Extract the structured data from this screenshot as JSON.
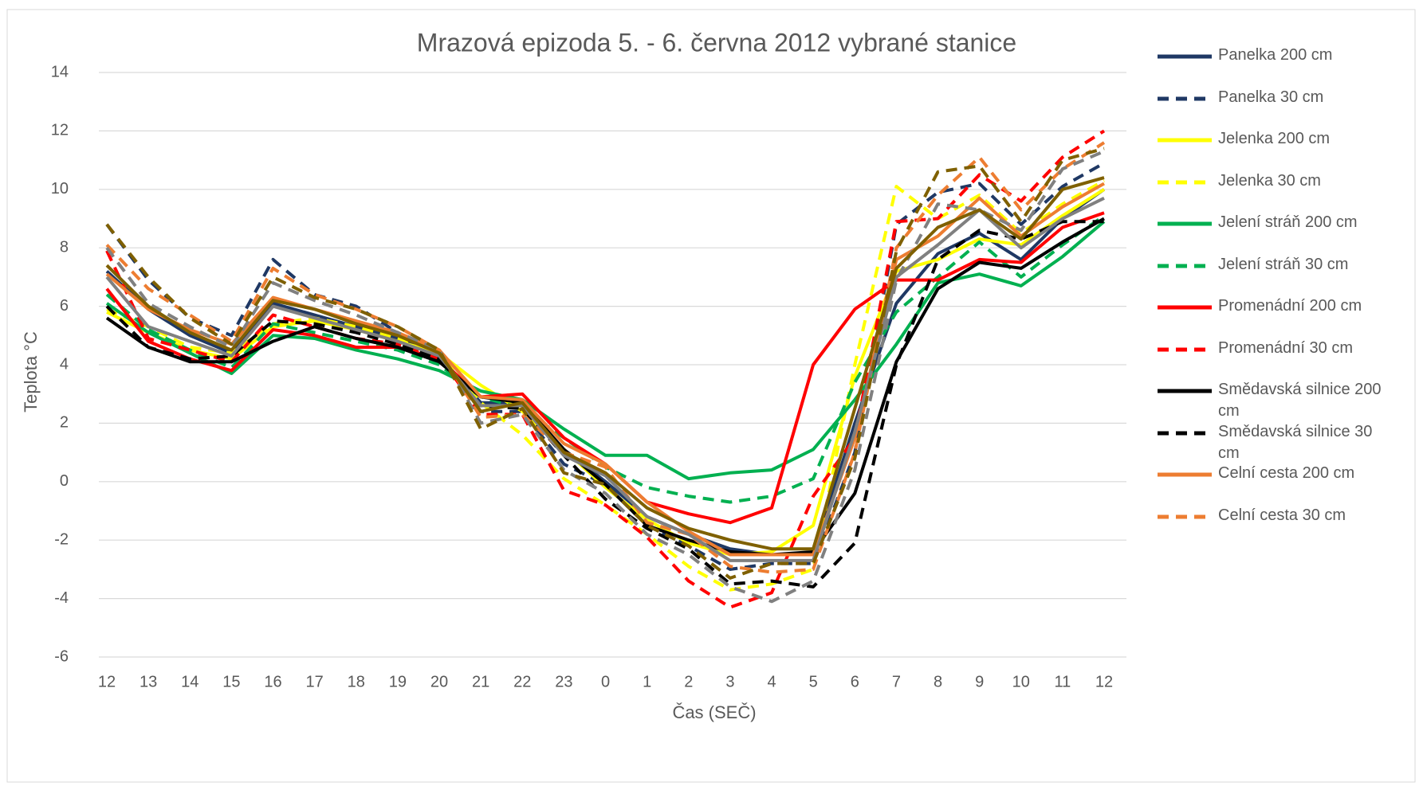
{
  "chart_data": {
    "type": "line",
    "title": "Mrazová epizoda 5. - 6. června 2012 vybrané stanice",
    "x_label": "Čas (SEČ)",
    "y_label": "Teplota °C",
    "categories": [
      "12",
      "13",
      "14",
      "15",
      "16",
      "17",
      "18",
      "19",
      "20",
      "21",
      "22",
      "23",
      "0",
      "1",
      "2",
      "3",
      "4",
      "5",
      "6",
      "7",
      "8",
      "9",
      "10",
      "11",
      "12"
    ],
    "ylim": [
      -6,
      14
    ],
    "yticks": [
      -6,
      -4,
      -2,
      0,
      2,
      4,
      6,
      8,
      10,
      12,
      14
    ],
    "grid": true,
    "legend": "right",
    "series": [
      {
        "name": "Panelka 200 cm",
        "color": "#1f3864",
        "dashed": false,
        "values": [
          7.2,
          5.9,
          5.0,
          4.4,
          6.1,
          5.7,
          5.3,
          4.9,
          4.3,
          2.7,
          2.7,
          1.1,
          0.0,
          -1.2,
          -1.8,
          -2.3,
          -2.5,
          -2.5,
          2.0,
          6.1,
          7.8,
          8.5,
          7.6,
          9.0,
          10.0
        ]
      },
      {
        "name": "Panelka 30 cm",
        "color": "#1f3864",
        "dashed": true,
        "values": [
          8.8,
          6.9,
          5.6,
          5.0,
          7.6,
          6.4,
          6.0,
          5.1,
          4.3,
          2.4,
          2.4,
          0.6,
          -0.1,
          -1.5,
          -2.2,
          -3.0,
          -2.8,
          -2.8,
          1.0,
          8.8,
          9.9,
          10.2,
          8.8,
          10.1,
          10.9
        ]
      },
      {
        "name": "Jelenka 200 cm",
        "color": "#ffff00",
        "dashed": false,
        "values": [
          5.8,
          5.1,
          4.5,
          4.2,
          5.3,
          5.5,
          5.2,
          4.8,
          4.4,
          3.3,
          2.4,
          1.1,
          -0.2,
          -1.3,
          -2.1,
          -2.5,
          -2.4,
          -1.5,
          3.6,
          7.2,
          7.6,
          8.3,
          8.1,
          9.1,
          10.0
        ]
      },
      {
        "name": "Jelenka 30 cm",
        "color": "#ffff00",
        "dashed": true,
        "values": [
          5.9,
          5.3,
          4.6,
          4.4,
          5.4,
          5.6,
          5.3,
          4.9,
          4.4,
          2.7,
          1.6,
          0.1,
          -0.8,
          -1.8,
          -2.9,
          -3.7,
          -3.5,
          -3.0,
          4.0,
          10.1,
          9.0,
          9.8,
          8.5,
          9.5,
          10.3
        ]
      },
      {
        "name": "Jelení stráň 200 cm",
        "color": "#00b050",
        "dashed": false,
        "values": [
          6.1,
          5.1,
          4.4,
          3.7,
          5.0,
          4.9,
          4.5,
          4.2,
          3.8,
          3.1,
          2.8,
          1.8,
          0.9,
          0.9,
          0.1,
          0.3,
          0.4,
          1.1,
          2.8,
          4.7,
          6.8,
          7.1,
          6.7,
          7.7,
          8.9
        ]
      },
      {
        "name": "Jelení stráň 30 cm",
        "color": "#00b050",
        "dashed": true,
        "values": [
          6.4,
          5.2,
          4.5,
          3.9,
          5.4,
          5.1,
          4.8,
          4.5,
          4.0,
          2.9,
          2.5,
          1.5,
          0.5,
          -0.2,
          -0.5,
          -0.7,
          -0.5,
          0.1,
          3.4,
          5.8,
          7.0,
          8.2,
          7.0,
          8.1,
          9.1
        ]
      },
      {
        "name": "Promenádní 200 cm",
        "color": "#ff0000",
        "dashed": false,
        "values": [
          6.6,
          4.8,
          4.2,
          3.8,
          5.2,
          5.0,
          4.6,
          4.6,
          4.2,
          2.9,
          3.0,
          1.5,
          0.6,
          -0.7,
          -1.1,
          -1.4,
          -0.9,
          4.0,
          5.9,
          6.9,
          6.9,
          7.6,
          7.5,
          8.7,
          9.2
        ]
      },
      {
        "name": "Promenádní 30 cm",
        "color": "#ff0000",
        "dashed": true,
        "values": [
          7.9,
          4.9,
          4.5,
          4.1,
          5.7,
          5.3,
          4.9,
          4.7,
          4.3,
          2.3,
          2.3,
          -0.3,
          -0.8,
          -1.9,
          -3.4,
          -4.3,
          -3.8,
          -0.5,
          1.5,
          8.9,
          9.0,
          10.5,
          9.6,
          11.1,
          12.0
        ]
      },
      {
        "name": "Smědavská silnice 200 cm",
        "color": "#000000",
        "dashed": false,
        "values": [
          5.6,
          4.6,
          4.1,
          4.1,
          4.8,
          5.3,
          4.9,
          4.6,
          4.1,
          2.9,
          2.7,
          1.1,
          -0.1,
          -1.5,
          -2.0,
          -2.4,
          -2.5,
          -2.4,
          -0.4,
          4.1,
          6.6,
          7.5,
          7.3,
          8.2,
          9.0
        ]
      },
      {
        "name": "Smědavská silnice 30 cm",
        "color": "#000000",
        "dashed": true,
        "values": [
          6.0,
          4.6,
          4.2,
          4.3,
          5.5,
          5.4,
          5.1,
          4.7,
          4.2,
          2.6,
          2.5,
          0.9,
          -0.6,
          -1.6,
          -2.3,
          -3.5,
          -3.4,
          -3.6,
          -2.1,
          4.0,
          7.6,
          8.6,
          8.3,
          8.9,
          8.9
        ]
      },
      {
        "name": "Celní cesta 200 cm",
        "color": "#ed7d31",
        "dashed": false,
        "values": [
          7.1,
          5.9,
          5.2,
          4.7,
          6.3,
          5.9,
          5.5,
          5.1,
          4.5,
          2.9,
          2.8,
          1.3,
          0.6,
          -0.7,
          -1.7,
          -2.5,
          -2.5,
          -2.5,
          1.5,
          7.6,
          8.4,
          9.7,
          8.4,
          9.4,
          10.2
        ]
      },
      {
        "name": "Celní cesta 30 cm",
        "color": "#ed7d31",
        "dashed": true,
        "values": [
          8.1,
          6.6,
          5.7,
          4.8,
          7.3,
          6.4,
          5.9,
          5.3,
          4.5,
          2.2,
          2.3,
          1.0,
          0.5,
          -1.4,
          -1.8,
          -2.9,
          -3.1,
          -3.0,
          1.0,
          8.0,
          9.8,
          11.1,
          9.3,
          10.7,
          11.6
        ]
      },
      {
        "color": "#808080",
        "dashed": false,
        "values": [
          7.0,
          5.3,
          4.8,
          4.3,
          6.0,
          5.6,
          5.2,
          4.8,
          4.3,
          2.6,
          2.6,
          0.9,
          0.2,
          -1.2,
          -1.8,
          -2.7,
          -2.7,
          -2.7,
          1.7,
          7.0,
          8.1,
          9.3,
          8.0,
          9.0,
          9.7
        ]
      },
      {
        "color": "#808080",
        "dashed": true,
        "values": [
          8.0,
          6.1,
          5.3,
          4.6,
          6.8,
          6.2,
          5.7,
          5.1,
          4.5,
          2.0,
          2.3,
          0.4,
          -0.4,
          -1.8,
          -2.5,
          -3.6,
          -4.1,
          -3.4,
          0.4,
          6.9,
          9.5,
          9.3,
          8.6,
          10.7,
          11.3
        ]
      },
      {
        "color": "#7f6000",
        "dashed": false,
        "values": [
          7.4,
          6.0,
          5.1,
          4.5,
          6.2,
          5.9,
          5.4,
          5.0,
          4.4,
          2.4,
          2.7,
          1.0,
          0.3,
          -0.9,
          -1.6,
          -2.0,
          -2.3,
          -2.3,
          2.5,
          7.3,
          8.7,
          9.3,
          8.3,
          10.0,
          10.4
        ]
      },
      {
        "color": "#7f6000",
        "dashed": true,
        "values": [
          8.8,
          7.0,
          5.6,
          4.7,
          7.0,
          6.3,
          5.9,
          5.3,
          4.5,
          1.8,
          2.5,
          0.3,
          -0.1,
          -1.5,
          -2.2,
          -3.3,
          -2.8,
          -2.8,
          0.8,
          7.9,
          10.6,
          10.8,
          8.9,
          11.0,
          11.4
        ]
      }
    ]
  }
}
